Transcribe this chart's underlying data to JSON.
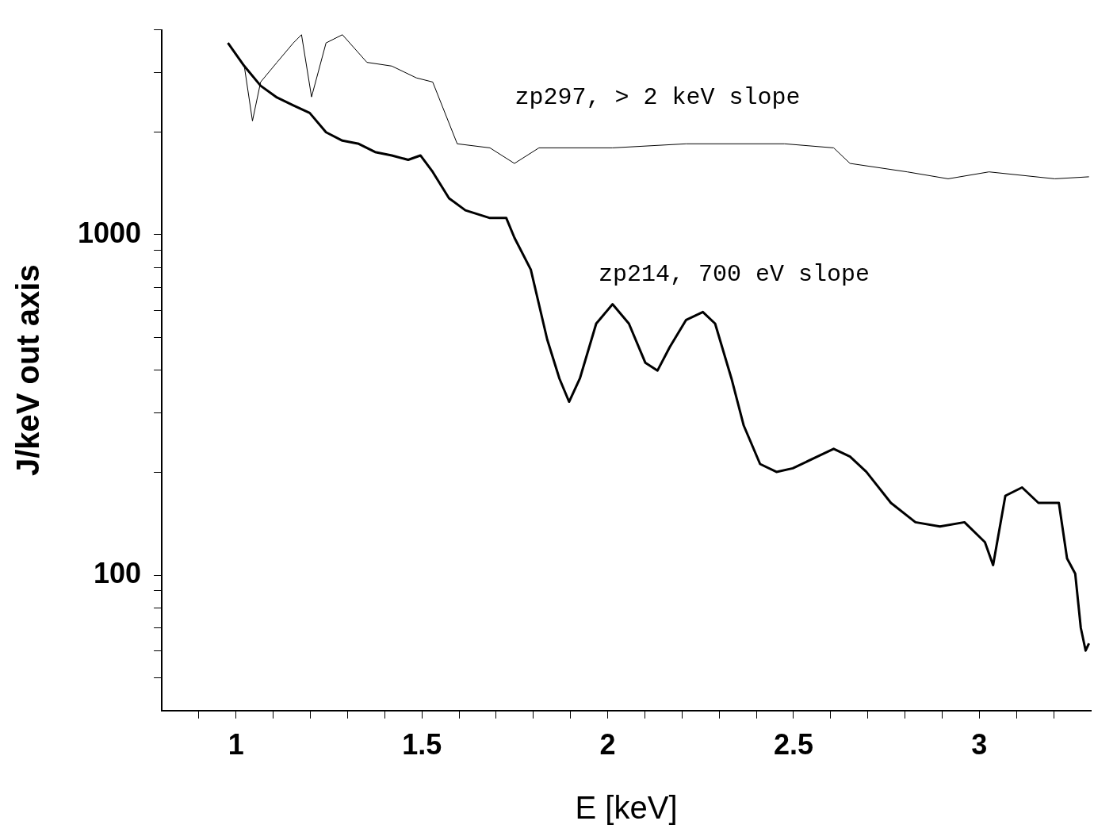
{
  "chart_data": {
    "type": "line",
    "xlabel": "E [keV]",
    "ylabel": "J/keV out axis",
    "log": "y",
    "xlim": [
      0.8,
      3.3
    ],
    "ylim": [
      40,
      4000
    ],
    "xticks": [
      {
        "value": 0.9,
        "label": null
      },
      1,
      {
        "value": 1.1,
        "label": null
      },
      {
        "value": 1.2,
        "label": null
      },
      {
        "value": 1.3,
        "label": null
      },
      {
        "value": 1.4,
        "label": null
      },
      1.5,
      {
        "value": 1.6,
        "label": null
      },
      {
        "value": 1.7,
        "label": null
      },
      {
        "value": 1.8,
        "label": null
      },
      {
        "value": 1.9,
        "label": null
      },
      2,
      {
        "value": 2.1,
        "label": null
      },
      {
        "value": 2.2,
        "label": null
      },
      {
        "value": 2.3,
        "label": null
      },
      {
        "value": 2.4,
        "label": null
      },
      2.5,
      {
        "value": 2.6,
        "label": null
      },
      {
        "value": 2.7,
        "label": null
      },
      {
        "value": 2.8,
        "label": null
      },
      {
        "value": 2.9,
        "label": null
      },
      3,
      {
        "value": 3.1,
        "label": null
      },
      {
        "value": 3.2,
        "label": null
      }
    ],
    "yticks": [
      {
        "value": 50,
        "label": null
      },
      {
        "value": 60,
        "label": null
      },
      {
        "value": 70,
        "label": null
      },
      {
        "value": 80,
        "label": null
      },
      {
        "value": 90,
        "label": null
      },
      100,
      {
        "value": 200,
        "label": null
      },
      {
        "value": 300,
        "label": null
      },
      {
        "value": 400,
        "label": null
      },
      {
        "value": 500,
        "label": null
      },
      {
        "value": 600,
        "label": null
      },
      {
        "value": 700,
        "label": null
      },
      {
        "value": 800,
        "label": null
      },
      {
        "value": 900,
        "label": null
      },
      1000,
      {
        "value": 2000,
        "label": null
      },
      {
        "value": 3000,
        "label": null
      },
      {
        "value": 4000,
        "label": null
      }
    ],
    "grid": false,
    "legend": false,
    "marker": "none",
    "line_style": "solid",
    "series": [
      {
        "color": "#000000",
        "x": [
          0.978,
          1.022,
          1.066,
          1.11,
          1.154,
          1.198,
          1.242,
          1.286,
          1.33,
          1.374,
          1.419,
          1.463,
          1.496,
          1.529,
          1.573,
          1.617,
          1.683,
          1.727,
          1.749,
          1.793,
          1.837,
          1.87,
          1.896,
          1.925,
          1.969,
          2.013,
          2.057,
          2.101,
          2.134,
          2.167,
          2.211,
          2.256,
          2.289,
          2.333,
          2.366,
          2.41,
          2.454,
          2.498,
          2.564,
          2.608,
          2.652,
          2.696,
          2.762,
          2.828,
          2.894,
          2.96,
          3.015,
          3.037,
          3.07,
          3.115,
          3.159,
          3.214,
          3.236,
          3.258,
          3.273,
          3.286,
          3.295
        ],
        "values": [
          3660,
          3130,
          2740,
          2530,
          2400,
          2280,
          2000,
          1890,
          1850,
          1750,
          1710,
          1660,
          1710,
          1530,
          1280,
          1180,
          1120,
          1120,
          980,
          790,
          493,
          378,
          323,
          378,
          548,
          625,
          548,
          421,
          399,
          468,
          562,
          593,
          548,
          378,
          275,
          212,
          201,
          206,
          223,
          235,
          223,
          201,
          163,
          143,
          139,
          143,
          125,
          107,
          171,
          181,
          163,
          163,
          112,
          101,
          70,
          60,
          63
        ]
      },
      {
        "color": "#000000",
        "x": [
          0.978,
          1.022,
          1.044,
          1.066,
          1.11,
          1.154,
          1.176,
          1.203,
          1.242,
          1.286,
          1.352,
          1.419,
          1.485,
          1.529,
          1.595,
          1.683,
          1.749,
          1.815,
          2.013,
          2.211,
          2.476,
          2.608,
          2.652,
          2.806,
          2.916,
          3.026,
          3.203,
          3.295
        ],
        "values": [
          3660,
          3130,
          2160,
          2810,
          3210,
          3660,
          3870,
          2540,
          3660,
          3870,
          3210,
          3130,
          2890,
          2810,
          1850,
          1800,
          1620,
          1800,
          1800,
          1850,
          1850,
          1800,
          1620,
          1530,
          1460,
          1530,
          1460,
          1480
        ]
      }
    ],
    "annotations": [
      "zp297, > 2 keV slope",
      "zp214, 700 eV slope"
    ]
  }
}
